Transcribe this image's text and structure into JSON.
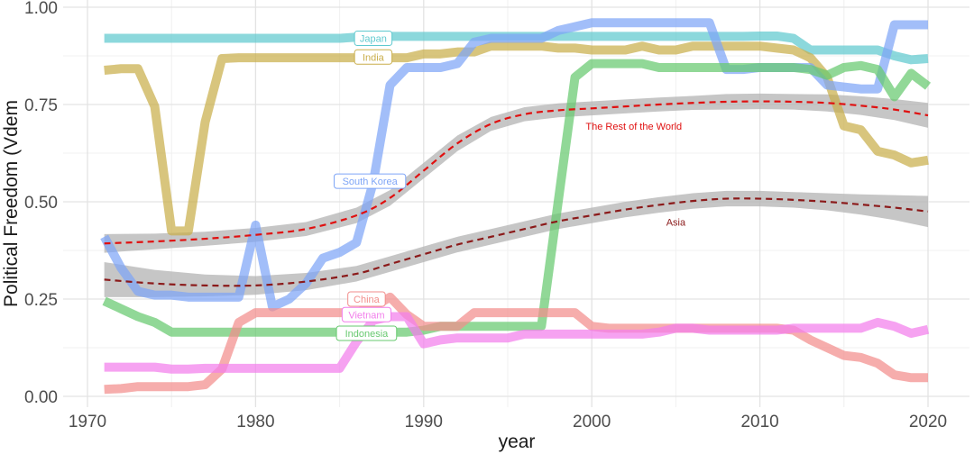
{
  "chart_data": {
    "type": "line",
    "xlabel": "year",
    "ylabel": "Political Freedom (Vdem",
    "xlim": [
      1967,
      2022
    ],
    "ylim": [
      0,
      1
    ],
    "x_ticks": [
      "1970",
      "1980",
      "1990",
      "2000",
      "2010",
      "2020"
    ],
    "y_ticks": [
      "0.00",
      "0.25",
      "0.50",
      "0.75",
      "1.00"
    ],
    "grid": true,
    "series": [
      {
        "name": "Japan",
        "color": "#5FC9CF",
        "label_at": [
          1987,
          0.92
        ],
        "x": [
          1971,
          1972,
          1973,
          1974,
          1975,
          1976,
          1977,
          1978,
          1979,
          1980,
          1981,
          1982,
          1983,
          1984,
          1985,
          1986,
          1987,
          1988,
          1989,
          1990,
          1991,
          1992,
          1993,
          1994,
          1995,
          1996,
          1997,
          1998,
          1999,
          2000,
          2001,
          2002,
          2003,
          2004,
          2005,
          2006,
          2007,
          2008,
          2009,
          2010,
          2011,
          2012,
          2013,
          2014,
          2015,
          2016,
          2017,
          2018,
          2019,
          2020
        ],
        "y": [
          0.92,
          0.92,
          0.92,
          0.92,
          0.92,
          0.92,
          0.92,
          0.92,
          0.92,
          0.92,
          0.92,
          0.92,
          0.92,
          0.92,
          0.92,
          0.923,
          0.925,
          0.925,
          0.925,
          0.925,
          0.925,
          0.925,
          0.925,
          0.925,
          0.925,
          0.925,
          0.925,
          0.925,
          0.925,
          0.925,
          0.925,
          0.925,
          0.925,
          0.925,
          0.925,
          0.925,
          0.925,
          0.925,
          0.925,
          0.926,
          0.926,
          0.92,
          0.89,
          0.89,
          0.89,
          0.89,
          0.89,
          0.875,
          0.865,
          0.868
        ]
      },
      {
        "name": "India",
        "color": "#C9AE4B",
        "label_at": [
          1987,
          0.872
        ],
        "x": [
          1971,
          1972,
          1973,
          1974,
          1975,
          1976,
          1977,
          1978,
          1979,
          1980,
          1981,
          1982,
          1983,
          1984,
          1985,
          1986,
          1987,
          1988,
          1989,
          1990,
          1991,
          1992,
          1993,
          1994,
          1995,
          1996,
          1997,
          1998,
          1999,
          2000,
          2001,
          2002,
          2003,
          2004,
          2005,
          2006,
          2007,
          2008,
          2009,
          2010,
          2011,
          2012,
          2013,
          2014,
          2015,
          2016,
          2017,
          2018,
          2019,
          2020
        ],
        "y": [
          0.838,
          0.842,
          0.842,
          0.745,
          0.425,
          0.425,
          0.705,
          0.868,
          0.87,
          0.87,
          0.87,
          0.87,
          0.87,
          0.87,
          0.87,
          0.87,
          0.87,
          0.87,
          0.87,
          0.88,
          0.88,
          0.885,
          0.885,
          0.9,
          0.9,
          0.9,
          0.9,
          0.895,
          0.895,
          0.89,
          0.89,
          0.89,
          0.9,
          0.89,
          0.89,
          0.9,
          0.9,
          0.9,
          0.9,
          0.9,
          0.895,
          0.89,
          0.87,
          0.82,
          0.695,
          0.685,
          0.63,
          0.62,
          0.6,
          0.607
        ]
      },
      {
        "name": "South Korea",
        "color": "#7EA5F6",
        "label_at": [
          1986.8,
          0.553
        ],
        "x": [
          1971,
          1972,
          1973,
          1974,
          1975,
          1976,
          1977,
          1978,
          1979,
          1980,
          1981,
          1982,
          1983,
          1984,
          1985,
          1986,
          1987,
          1988,
          1989,
          1990,
          1991,
          1992,
          1993,
          1994,
          1995,
          1996,
          1997,
          1998,
          1999,
          2000,
          2001,
          2002,
          2003,
          2004,
          2005,
          2006,
          2007,
          2008,
          2009,
          2010,
          2011,
          2012,
          2013,
          2014,
          2015,
          2016,
          2017,
          2018,
          2019,
          2020
        ],
        "y": [
          0.41,
          0.33,
          0.27,
          0.26,
          0.26,
          0.255,
          0.255,
          0.255,
          0.255,
          0.44,
          0.23,
          0.25,
          0.29,
          0.355,
          0.37,
          0.395,
          0.55,
          0.8,
          0.845,
          0.845,
          0.845,
          0.855,
          0.91,
          0.92,
          0.92,
          0.92,
          0.92,
          0.94,
          0.95,
          0.96,
          0.96,
          0.96,
          0.96,
          0.96,
          0.96,
          0.96,
          0.96,
          0.84,
          0.84,
          0.845,
          0.845,
          0.845,
          0.845,
          0.8,
          0.795,
          0.79,
          0.79,
          0.955,
          0.955,
          0.955
        ]
      },
      {
        "name": "Indonesia",
        "color": "#67C96F",
        "label_at": [
          1986.6,
          0.162
        ],
        "x": [
          1971,
          1972,
          1973,
          1974,
          1975,
          1976,
          1977,
          1978,
          1979,
          1980,
          1981,
          1982,
          1983,
          1984,
          1985,
          1986,
          1987,
          1988,
          1989,
          1990,
          1991,
          1992,
          1993,
          1994,
          1995,
          1996,
          1997,
          1998,
          1999,
          2000,
          2001,
          2002,
          2003,
          2004,
          2005,
          2006,
          2007,
          2008,
          2009,
          2010,
          2011,
          2012,
          2013,
          2014,
          2015,
          2016,
          2017,
          2018,
          2019,
          2020
        ],
        "y": [
          0.245,
          0.225,
          0.205,
          0.19,
          0.165,
          0.165,
          0.165,
          0.165,
          0.165,
          0.165,
          0.165,
          0.165,
          0.165,
          0.165,
          0.165,
          0.165,
          0.165,
          0.165,
          0.165,
          0.17,
          0.18,
          0.18,
          0.18,
          0.18,
          0.18,
          0.18,
          0.18,
          0.5,
          0.82,
          0.855,
          0.855,
          0.855,
          0.855,
          0.845,
          0.845,
          0.845,
          0.845,
          0.845,
          0.845,
          0.845,
          0.845,
          0.845,
          0.84,
          0.825,
          0.845,
          0.85,
          0.84,
          0.77,
          0.83,
          0.797
        ]
      },
      {
        "name": "China",
        "color": "#F28E8C",
        "label_at": [
          1986.6,
          0.25
        ],
        "x": [
          1971,
          1972,
          1973,
          1974,
          1975,
          1976,
          1977,
          1978,
          1979,
          1980,
          1981,
          1982,
          1983,
          1984,
          1985,
          1986,
          1987,
          1988,
          1989,
          1990,
          1991,
          1992,
          1993,
          1994,
          1995,
          1996,
          1997,
          1998,
          1999,
          2000,
          2001,
          2002,
          2003,
          2004,
          2005,
          2006,
          2007,
          2008,
          2009,
          2010,
          2011,
          2012,
          2013,
          2014,
          2015,
          2016,
          2017,
          2018,
          2019,
          2020
        ],
        "y": [
          0.018,
          0.02,
          0.025,
          0.025,
          0.025,
          0.025,
          0.03,
          0.07,
          0.19,
          0.215,
          0.215,
          0.215,
          0.215,
          0.215,
          0.215,
          0.215,
          0.23,
          0.255,
          0.21,
          0.18,
          0.18,
          0.18,
          0.215,
          0.215,
          0.215,
          0.215,
          0.215,
          0.215,
          0.215,
          0.18,
          0.175,
          0.175,
          0.175,
          0.175,
          0.175,
          0.175,
          0.175,
          0.175,
          0.175,
          0.175,
          0.175,
          0.17,
          0.145,
          0.125,
          0.105,
          0.1,
          0.085,
          0.055,
          0.048,
          0.048
        ]
      },
      {
        "name": "Vietnam",
        "color": "#F27EEB",
        "label_at": [
          1986.6,
          0.21
        ],
        "x": [
          1971,
          1972,
          1973,
          1974,
          1975,
          1976,
          1977,
          1978,
          1979,
          1980,
          1981,
          1982,
          1983,
          1984,
          1985,
          1986,
          1987,
          1988,
          1989,
          1990,
          1991,
          1992,
          1993,
          1994,
          1995,
          1996,
          1997,
          1998,
          1999,
          2000,
          2001,
          2002,
          2003,
          2004,
          2005,
          2006,
          2007,
          2008,
          2009,
          2010,
          2011,
          2012,
          2013,
          2014,
          2015,
          2016,
          2017,
          2018,
          2019,
          2020
        ],
        "y": [
          0.075,
          0.075,
          0.075,
          0.075,
          0.07,
          0.07,
          0.072,
          0.072,
          0.072,
          0.072,
          0.072,
          0.072,
          0.072,
          0.072,
          0.072,
          0.14,
          0.195,
          0.205,
          0.205,
          0.135,
          0.145,
          0.15,
          0.15,
          0.15,
          0.15,
          0.16,
          0.16,
          0.16,
          0.16,
          0.16,
          0.16,
          0.16,
          0.16,
          0.165,
          0.175,
          0.175,
          0.17,
          0.17,
          0.17,
          0.17,
          0.17,
          0.175,
          0.175,
          0.175,
          0.175,
          0.175,
          0.19,
          0.18,
          0.162,
          0.172
        ]
      }
    ],
    "smooth_lines": [
      {
        "name": "The Rest of the World",
        "color": "#E01010",
        "label_at": [
          2002.5,
          0.695
        ],
        "x": [
          1971,
          1974,
          1977,
          1980,
          1983,
          1986,
          1988,
          1990,
          1992,
          1994,
          1996,
          1998,
          2000,
          2002,
          2004,
          2006,
          2008,
          2010,
          2012,
          2014,
          2016,
          2018,
          2020
        ],
        "y": [
          0.393,
          0.398,
          0.405,
          0.415,
          0.43,
          0.465,
          0.51,
          0.58,
          0.65,
          0.7,
          0.725,
          0.735,
          0.74,
          0.745,
          0.75,
          0.754,
          0.757,
          0.758,
          0.757,
          0.754,
          0.747,
          0.737,
          0.722
        ],
        "band": [
          0.024,
          0.02,
          0.018,
          0.018,
          0.018,
          0.02,
          0.02,
          0.02,
          0.02,
          0.018,
          0.018,
          0.018,
          0.018,
          0.018,
          0.018,
          0.018,
          0.02,
          0.02,
          0.02,
          0.022,
          0.024,
          0.027,
          0.032
        ]
      },
      {
        "name": "Asia",
        "color": "#8B1A1A",
        "label_at": [
          2005,
          0.448
        ],
        "x": [
          1971,
          1974,
          1977,
          1980,
          1983,
          1986,
          1988,
          1990,
          1992,
          1994,
          1996,
          1998,
          2000,
          2002,
          2004,
          2006,
          2008,
          2010,
          2012,
          2014,
          2016,
          2018,
          2020
        ],
        "y": [
          0.3,
          0.29,
          0.285,
          0.285,
          0.295,
          0.315,
          0.34,
          0.365,
          0.39,
          0.41,
          0.43,
          0.45,
          0.465,
          0.48,
          0.492,
          0.502,
          0.508,
          0.508,
          0.505,
          0.5,
          0.493,
          0.485,
          0.475
        ],
        "band": [
          0.045,
          0.035,
          0.028,
          0.024,
          0.022,
          0.02,
          0.02,
          0.02,
          0.02,
          0.02,
          0.02,
          0.02,
          0.02,
          0.02,
          0.02,
          0.02,
          0.02,
          0.02,
          0.02,
          0.022,
          0.026,
          0.032,
          0.04
        ]
      }
    ]
  }
}
